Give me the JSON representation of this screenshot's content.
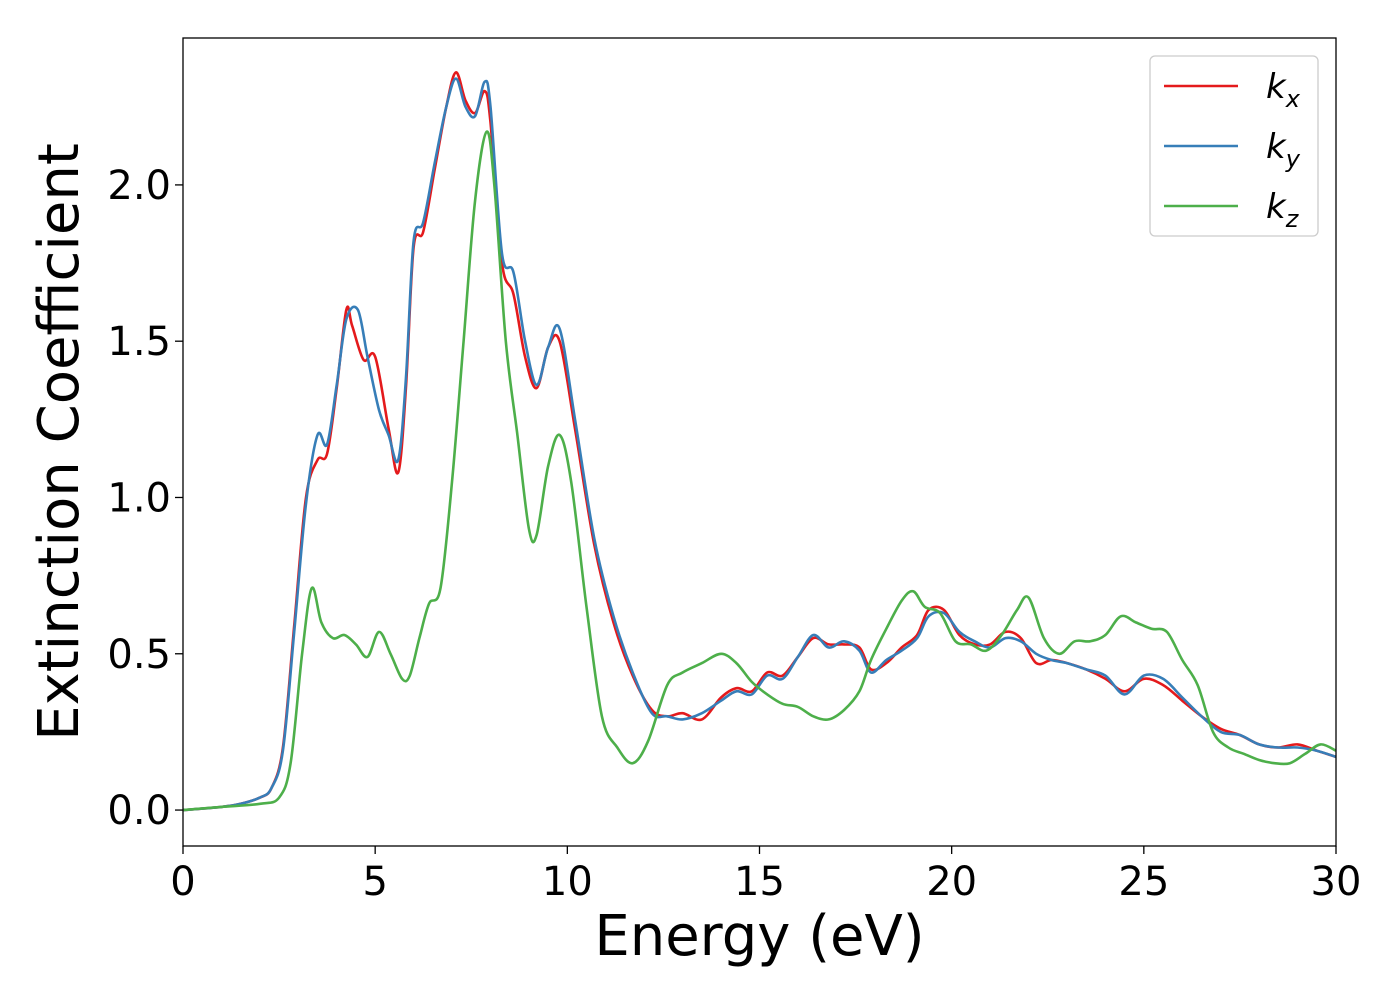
{
  "chart_data": {
    "type": "line",
    "xlabel": "Energy (eV)",
    "ylabel": "Extinction Coefficient",
    "xlim": [
      0,
      30
    ],
    "ylim": [
      -0.115,
      2.47
    ],
    "xticks": [
      0,
      5,
      10,
      15,
      20,
      25,
      30
    ],
    "xtick_labels": [
      "0",
      "5",
      "10",
      "15",
      "20",
      "25",
      "30"
    ],
    "yticks": [
      0.0,
      0.5,
      1.0,
      1.5,
      2.0
    ],
    "ytick_labels": [
      "0.0",
      "0.5",
      "1.0",
      "1.5",
      "2.0"
    ],
    "grid": false,
    "legend_position": "top-right",
    "series": [
      {
        "name": "k_x",
        "label_main": "k",
        "label_sub": "x",
        "color": "#e41a1c",
        "x": [
          0,
          1,
          1.5,
          2,
          2.3,
          2.6,
          2.9,
          3.2,
          3.5,
          3.75,
          4.0,
          4.25,
          4.4,
          4.7,
          5.0,
          5.35,
          5.6,
          5.8,
          6.0,
          6.25,
          6.55,
          6.85,
          7.1,
          7.35,
          7.6,
          7.85,
          8.0,
          8.3,
          8.6,
          8.9,
          9.2,
          9.5,
          9.8,
          10.2,
          10.7,
          11.2,
          11.7,
          12.2,
          12.6,
          13.0,
          13.5,
          14.0,
          14.4,
          14.8,
          15.2,
          15.6,
          16.0,
          16.4,
          16.8,
          17.2,
          17.6,
          17.9,
          18.3,
          18.7,
          19.1,
          19.4,
          19.8,
          20.2,
          20.6,
          21.0,
          21.4,
          21.8,
          22.2,
          22.6,
          23.0,
          23.5,
          24.0,
          24.5,
          25.0,
          25.5,
          26.0,
          26.5,
          27.0,
          27.5,
          28.0,
          28.5,
          29.0,
          29.5,
          30
        ],
        "y": [
          0,
          0.01,
          0.02,
          0.04,
          0.07,
          0.2,
          0.6,
          1.0,
          1.12,
          1.14,
          1.35,
          1.6,
          1.55,
          1.44,
          1.45,
          1.22,
          1.08,
          1.35,
          1.8,
          1.85,
          2.05,
          2.25,
          2.36,
          2.27,
          2.23,
          2.3,
          2.2,
          1.75,
          1.65,
          1.45,
          1.35,
          1.48,
          1.5,
          1.22,
          0.85,
          0.6,
          0.43,
          0.32,
          0.3,
          0.31,
          0.29,
          0.36,
          0.39,
          0.38,
          0.44,
          0.43,
          0.49,
          0.55,
          0.53,
          0.53,
          0.52,
          0.45,
          0.47,
          0.52,
          0.56,
          0.64,
          0.64,
          0.56,
          0.53,
          0.53,
          0.57,
          0.55,
          0.47,
          0.48,
          0.47,
          0.45,
          0.42,
          0.38,
          0.42,
          0.4,
          0.35,
          0.3,
          0.26,
          0.24,
          0.21,
          0.2,
          0.21,
          0.19,
          0.17
        ]
      },
      {
        "name": "k_y",
        "label_main": "k",
        "label_sub": "y",
        "color": "#377eb8",
        "x": [
          0,
          1,
          1.5,
          2,
          2.3,
          2.6,
          2.9,
          3.2,
          3.5,
          3.75,
          4.0,
          4.25,
          4.55,
          4.8,
          5.1,
          5.35,
          5.6,
          5.8,
          6.0,
          6.25,
          6.55,
          6.85,
          7.1,
          7.35,
          7.6,
          7.85,
          8.0,
          8.3,
          8.6,
          8.9,
          9.2,
          9.5,
          9.8,
          10.2,
          10.7,
          11.2,
          11.7,
          12.2,
          12.6,
          13.0,
          13.5,
          14.0,
          14.4,
          14.8,
          15.2,
          15.6,
          16.0,
          16.4,
          16.8,
          17.2,
          17.6,
          17.9,
          18.3,
          18.7,
          19.1,
          19.4,
          19.8,
          20.2,
          20.6,
          21.0,
          21.4,
          21.8,
          22.2,
          22.6,
          23.0,
          23.5,
          24.0,
          24.5,
          25.0,
          25.5,
          26.0,
          26.5,
          27.0,
          27.5,
          28.0,
          28.5,
          29.0,
          29.5,
          30
        ],
        "y": [
          0,
          0.01,
          0.02,
          0.04,
          0.07,
          0.19,
          0.58,
          0.98,
          1.2,
          1.17,
          1.36,
          1.57,
          1.6,
          1.45,
          1.28,
          1.2,
          1.12,
          1.38,
          1.82,
          1.88,
          2.07,
          2.25,
          2.34,
          2.25,
          2.22,
          2.33,
          2.25,
          1.78,
          1.72,
          1.5,
          1.36,
          1.48,
          1.54,
          1.25,
          0.87,
          0.62,
          0.44,
          0.31,
          0.3,
          0.29,
          0.31,
          0.35,
          0.38,
          0.37,
          0.43,
          0.42,
          0.49,
          0.56,
          0.52,
          0.54,
          0.51,
          0.44,
          0.48,
          0.51,
          0.55,
          0.62,
          0.63,
          0.57,
          0.54,
          0.52,
          0.55,
          0.54,
          0.5,
          0.48,
          0.47,
          0.45,
          0.43,
          0.37,
          0.43,
          0.42,
          0.36,
          0.3,
          0.25,
          0.24,
          0.21,
          0.2,
          0.2,
          0.19,
          0.17
        ]
      },
      {
        "name": "k_z",
        "label_main": "k",
        "label_sub": "z",
        "color": "#4daf4a",
        "x": [
          0,
          1,
          2,
          2.5,
          2.8,
          3.1,
          3.35,
          3.6,
          3.9,
          4.2,
          4.5,
          4.8,
          5.1,
          5.4,
          5.7,
          5.9,
          6.15,
          6.4,
          6.7,
          7.0,
          7.3,
          7.6,
          7.9,
          8.1,
          8.4,
          8.7,
          9.0,
          9.2,
          9.5,
          9.8,
          10.1,
          10.5,
          10.9,
          11.3,
          11.7,
          12.1,
          12.6,
          13.0,
          13.5,
          14.0,
          14.4,
          14.8,
          15.2,
          15.6,
          16.0,
          16.4,
          16.8,
          17.2,
          17.6,
          17.9,
          18.3,
          18.7,
          19.0,
          19.3,
          19.7,
          20.1,
          20.5,
          20.9,
          21.3,
          21.7,
          22.0,
          22.4,
          22.8,
          23.2,
          23.6,
          24.0,
          24.4,
          24.8,
          25.2,
          25.6,
          26.0,
          26.4,
          26.8,
          27.2,
          27.6,
          28.0,
          28.4,
          28.8,
          29.2,
          29.6,
          30
        ],
        "y": [
          0,
          0.01,
          0.02,
          0.04,
          0.15,
          0.5,
          0.71,
          0.6,
          0.55,
          0.56,
          0.53,
          0.49,
          0.57,
          0.5,
          0.42,
          0.43,
          0.55,
          0.66,
          0.71,
          1.05,
          1.5,
          1.95,
          2.17,
          2.0,
          1.5,
          1.2,
          0.9,
          0.88,
          1.1,
          1.2,
          1.05,
          0.65,
          0.3,
          0.2,
          0.15,
          0.22,
          0.4,
          0.44,
          0.47,
          0.5,
          0.47,
          0.41,
          0.37,
          0.34,
          0.33,
          0.3,
          0.29,
          0.32,
          0.38,
          0.48,
          0.58,
          0.67,
          0.7,
          0.65,
          0.63,
          0.54,
          0.53,
          0.51,
          0.56,
          0.64,
          0.68,
          0.55,
          0.5,
          0.54,
          0.54,
          0.56,
          0.62,
          0.6,
          0.58,
          0.57,
          0.48,
          0.4,
          0.25,
          0.2,
          0.18,
          0.16,
          0.15,
          0.15,
          0.18,
          0.21,
          0.19
        ]
      }
    ]
  }
}
